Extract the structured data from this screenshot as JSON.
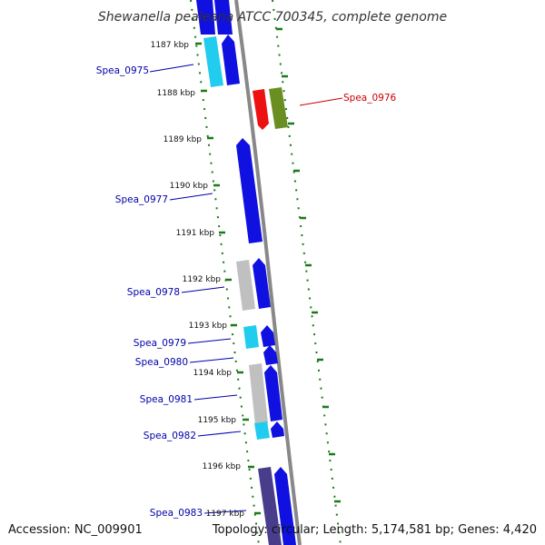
{
  "title": "Shewanella pealeana ATCC 700345, complete genome",
  "footer": {
    "accession": "Accession: NC_009901",
    "summary": "Topology: circular; Length: 5,174,581 bp; Genes: 4,420"
  },
  "colors": {
    "forward_gene": "#1010e0",
    "reverse_gene": "#c0c0c0",
    "cyan_gene": "#22ccee",
    "red_gene": "#ee1111",
    "olive_gene": "#6b8e23",
    "dark_gene": "#483d8b",
    "label_blue": "#0000aa",
    "label_red": "#cc0000",
    "dots": "#1a7a1a",
    "backbone": "#888888"
  },
  "scale_ticks": [
    {
      "label": "1187 kbp",
      "kbp": 1187
    },
    {
      "label": "1188 kbp",
      "kbp": 1188
    },
    {
      "label": "1189 kbp",
      "kbp": 1189
    },
    {
      "label": "1190 kbp",
      "kbp": 1190
    },
    {
      "label": "1191 kbp",
      "kbp": 1191
    },
    {
      "label": "1192 kbp",
      "kbp": 1192
    },
    {
      "label": "1193 kbp",
      "kbp": 1193
    },
    {
      "label": "1194 kbp",
      "kbp": 1194
    },
    {
      "label": "1195 kbp",
      "kbp": 1195
    },
    {
      "label": "1196 kbp",
      "kbp": 1196
    },
    {
      "label": "1197 kbp",
      "kbp": 1197
    }
  ],
  "gene_labels": [
    {
      "id": "spea-0975",
      "text": "Spea_0975",
      "color": "label_blue"
    },
    {
      "id": "spea-0976",
      "text": "Spea_0976",
      "color": "label_red"
    },
    {
      "id": "spea-0977",
      "text": "Spea_0977",
      "color": "label_blue"
    },
    {
      "id": "spea-0978",
      "text": "Spea_0978",
      "color": "label_blue"
    },
    {
      "id": "spea-0979",
      "text": "Spea_0979",
      "color": "label_blue"
    },
    {
      "id": "spea-0980",
      "text": "Spea_0980",
      "color": "label_blue"
    },
    {
      "id": "spea-0981",
      "text": "Spea_0981",
      "color": "label_blue"
    },
    {
      "id": "spea-0982",
      "text": "Spea_0982",
      "color": "label_blue"
    },
    {
      "id": "spea-0983",
      "text": "Spea_0983",
      "color": "label_blue"
    }
  ]
}
